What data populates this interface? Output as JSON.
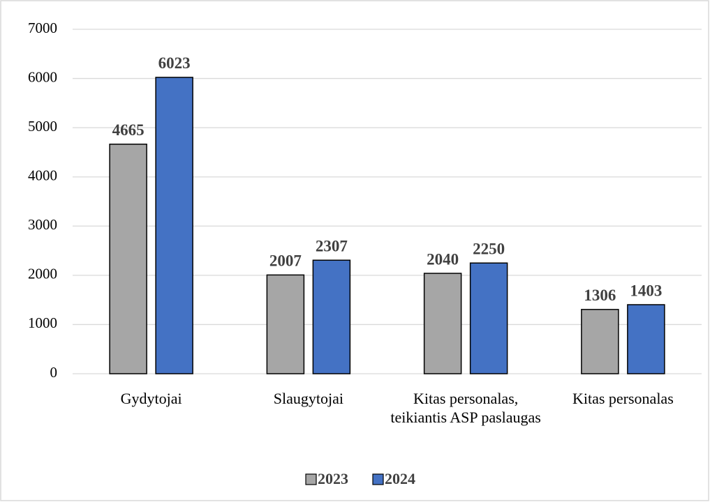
{
  "chart_data": {
    "type": "bar",
    "categories": [
      "Gydytojai",
      "Slaugytojai",
      "Kitas personalas, teikiantis ASP paslaugas",
      "Kitas personalas"
    ],
    "series": [
      {
        "name": "2023",
        "color": "#a6a6a6",
        "values": [
          4665,
          2007,
          2040,
          1306
        ]
      },
      {
        "name": "2024",
        "color": "#4472c4",
        "values": [
          6023,
          2307,
          2250,
          1403
        ]
      }
    ],
    "ylim": [
      0,
      7000
    ],
    "yticks": [
      0,
      1000,
      2000,
      3000,
      4000,
      5000,
      6000,
      7000
    ],
    "grid": true,
    "legend": "bottom"
  }
}
